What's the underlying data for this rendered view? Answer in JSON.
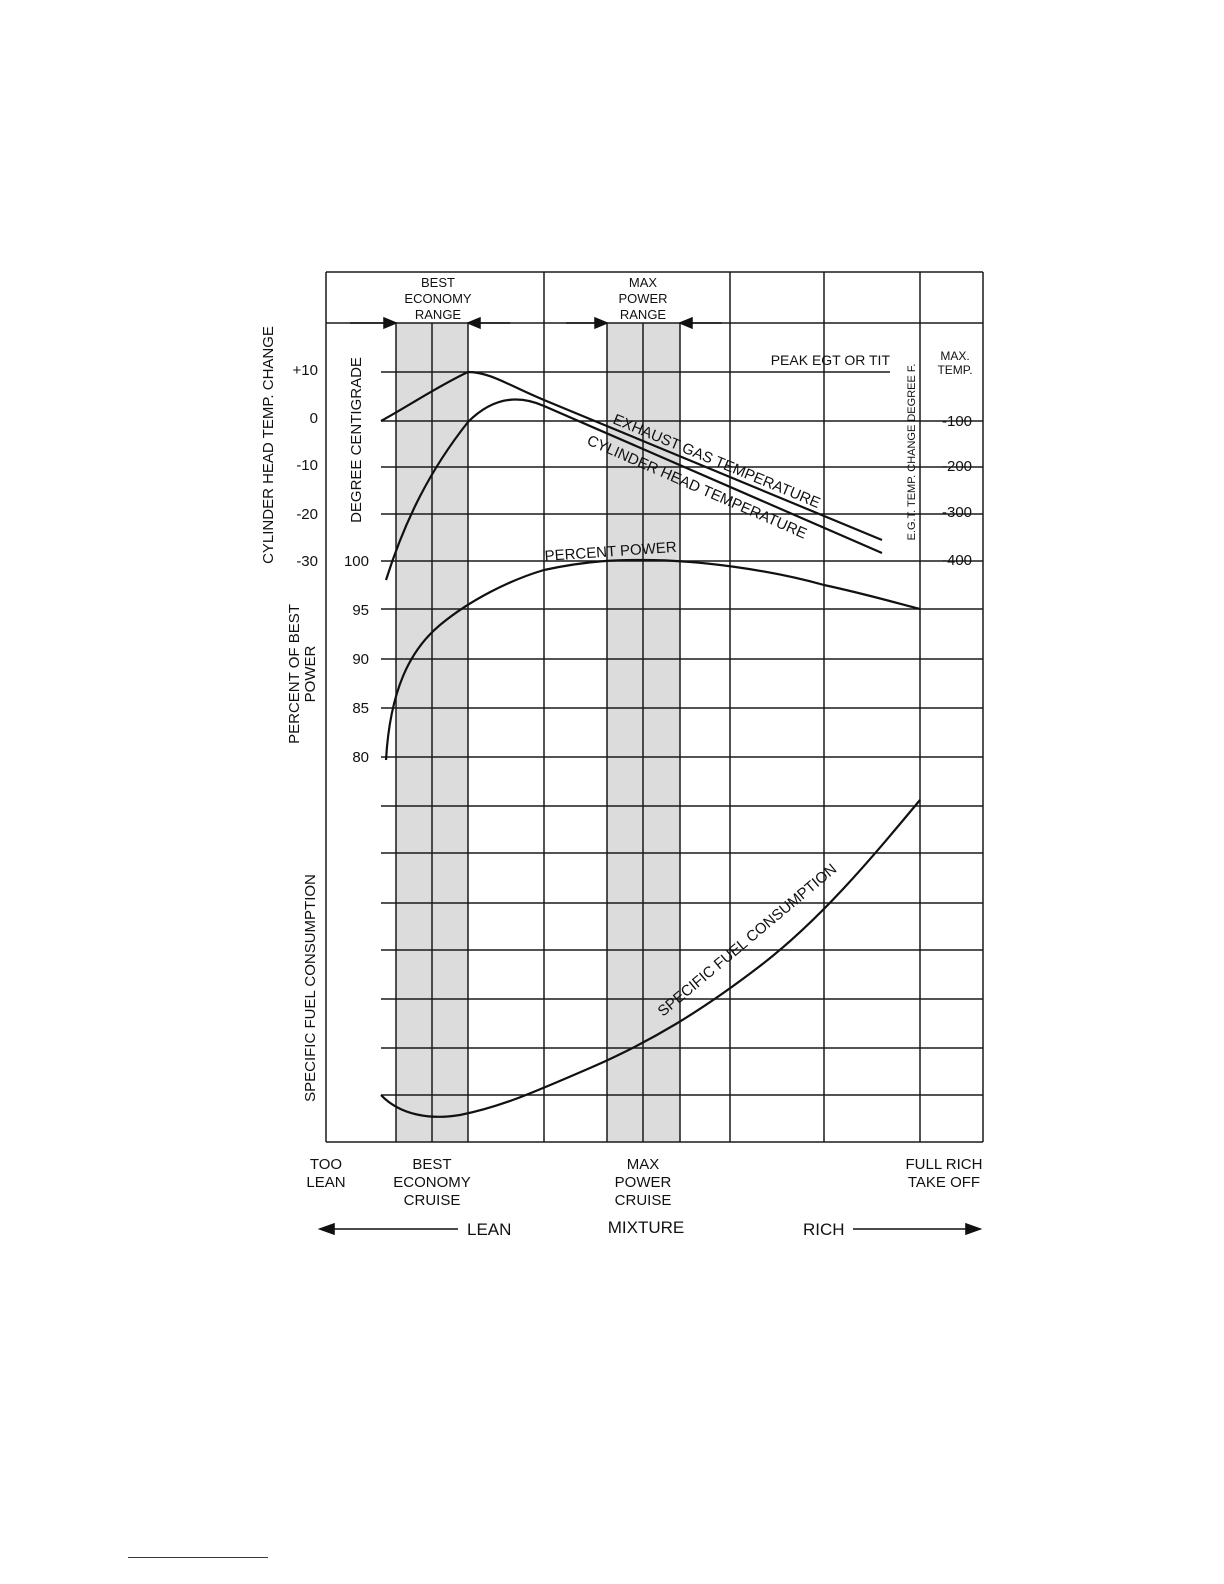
{
  "chart_data": {
    "type": "line",
    "x_label": "MIXTURE",
    "x_direction": {
      "left": "LEAN",
      "right": "RICH"
    },
    "x_categories": [
      "TOO LEAN",
      "BEST ECONOMY CRUISE",
      "MAX POWER CRUISE",
      "FULL RICH TAKE OFF"
    ],
    "ranges": [
      {
        "label": "BEST ECONOMY RANGE"
      },
      {
        "label": "MAX POWER RANGE"
      }
    ],
    "axes": {
      "cylinder_head": {
        "label": "CYLINDER HEAD TEMP. CHANGE",
        "unit": "DEGREE CENTIGRADE",
        "ticks": [
          "+10",
          "0",
          "-10",
          "-20",
          "-30"
        ]
      },
      "egt": {
        "label": "E.G.T. TEMP. CHANGE DEGREE F.",
        "ticks": [
          "MAX. TEMP.",
          "-100",
          "-200",
          "-300",
          "-400"
        ]
      },
      "power": {
        "label": "PERCENT OF BEST POWER",
        "ticks": [
          "100",
          "95",
          "90",
          "85",
          "80"
        ]
      },
      "sfc": {
        "label": "SPECIFIC FUEL CONSUMPTION"
      }
    },
    "annotations": [
      "PEAK EGT OR TIT"
    ],
    "series": [
      {
        "name": "EXHAUST GAS TEMPERATURE"
      },
      {
        "name": "CYLINDER HEAD TEMPERATURE"
      },
      {
        "name": "PERCENT POWER"
      },
      {
        "name": "SPECIFIC FUEL CONSUMPTION"
      }
    ]
  }
}
